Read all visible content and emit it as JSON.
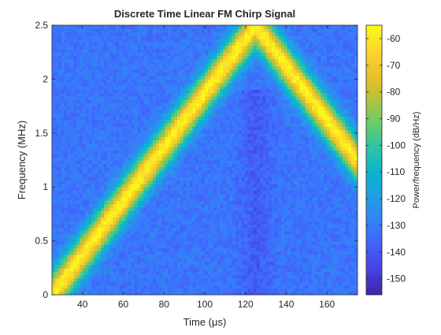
{
  "chart_data": {
    "type": "heatmap",
    "title": "Discrete Time Linear FM Chirp Signal",
    "xlabel": "Time (μs)",
    "ylabel": "Frequency (MHz)",
    "colorbar_label": "Power/frequency (dB/Hz)",
    "colormap": "parula",
    "x_range": [
      25,
      175
    ],
    "y_range": [
      0,
      2.5
    ],
    "clim": [
      -156,
      -55
    ],
    "x_ticks": [
      40,
      60,
      80,
      100,
      120,
      140,
      160
    ],
    "y_ticks": [
      0,
      0.5,
      1,
      1.5,
      2,
      2.5
    ],
    "colorbar_ticks": [
      -60,
      -70,
      -80,
      -90,
      -100,
      -110,
      -120,
      -130,
      -140,
      -150
    ],
    "chirp": {
      "rising_start": [
        25,
        0
      ],
      "rising_end": [
        125,
        2.5
      ],
      "falling_start": [
        125,
        2.5
      ],
      "falling_end": [
        175,
        1.25
      ],
      "peak_db": -57,
      "floor_db": -132
    }
  }
}
